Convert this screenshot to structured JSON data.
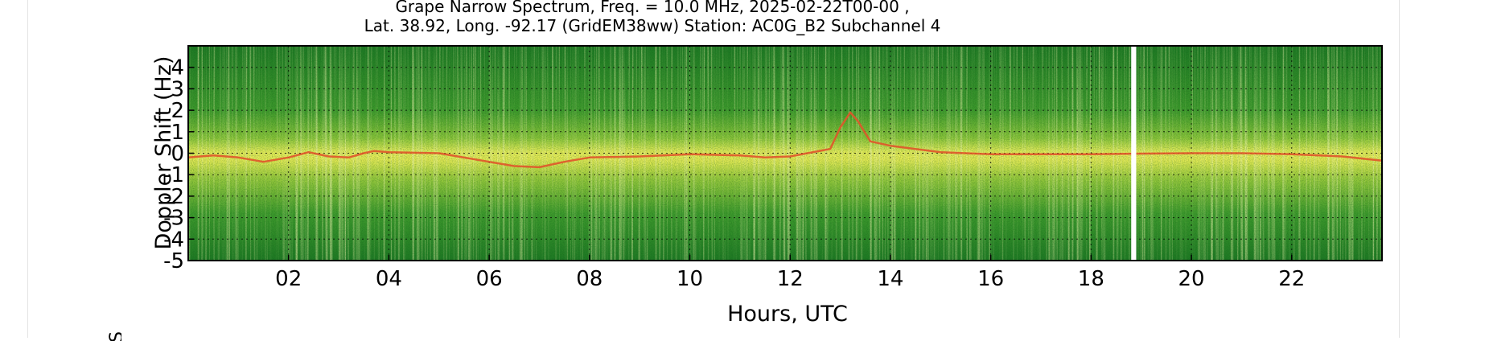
{
  "chart_data": {
    "type": "heatmap",
    "title_line1": "Grape Narrow Spectrum, Freq. = 10.0 MHz, 2025-02-22T00-00 ,",
    "title_line2": "Lat.  38.92, Long. -92.17 (GridEM38ww) Station: AC0G_B2 Subchannel 4",
    "xlabel": "Hours, UTC",
    "ylabel": "Doppler Shift (Hz)",
    "xlim": [
      0,
      23.8
    ],
    "ylim": [
      -5,
      5
    ],
    "xticks": [
      {
        "value": 2,
        "label": "02"
      },
      {
        "value": 4,
        "label": "04"
      },
      {
        "value": 6,
        "label": "06"
      },
      {
        "value": 8,
        "label": "08"
      },
      {
        "value": 10,
        "label": "10"
      },
      {
        "value": 12,
        "label": "12"
      },
      {
        "value": 14,
        "label": "14"
      },
      {
        "value": 16,
        "label": "16"
      },
      {
        "value": 18,
        "label": "18"
      },
      {
        "value": 20,
        "label": "20"
      },
      {
        "value": 22,
        "label": "22"
      }
    ],
    "yticks": [
      {
        "value": 4,
        "label": "4"
      },
      {
        "value": 3,
        "label": "3"
      },
      {
        "value": 2,
        "label": "2"
      },
      {
        "value": 1,
        "label": "1"
      },
      {
        "value": 0,
        "label": "0"
      },
      {
        "value": -1,
        "label": "-1"
      },
      {
        "value": -2,
        "label": "-2"
      },
      {
        "value": -3,
        "label": "-3"
      },
      {
        "value": -4,
        "label": "-4"
      },
      {
        "value": -5,
        "label": "-5"
      }
    ],
    "grid": true,
    "colormap": [
      "#1f7a24",
      "#4ea62e",
      "#8cc63a",
      "#e8ec55",
      "#f2a33a",
      "#e0552a"
    ],
    "data_gap_hours": [
      18.8,
      18.9
    ],
    "doppler_trace": [
      [
        0.0,
        -0.2
      ],
      [
        0.5,
        -0.1
      ],
      [
        1.0,
        -0.2
      ],
      [
        1.5,
        -0.4
      ],
      [
        2.0,
        -0.2
      ],
      [
        2.4,
        0.05
      ],
      [
        2.8,
        -0.15
      ],
      [
        3.2,
        -0.2
      ],
      [
        3.5,
        0.0
      ],
      [
        3.7,
        0.1
      ],
      [
        4.0,
        0.05
      ],
      [
        5.0,
        0.0
      ],
      [
        6.0,
        -0.4
      ],
      [
        6.5,
        -0.6
      ],
      [
        7.0,
        -0.65
      ],
      [
        7.5,
        -0.4
      ],
      [
        8.0,
        -0.2
      ],
      [
        9.0,
        -0.15
      ],
      [
        10.0,
        -0.05
      ],
      [
        11.0,
        -0.1
      ],
      [
        11.5,
        -0.2
      ],
      [
        12.0,
        -0.15
      ],
      [
        12.8,
        0.2
      ],
      [
        13.0,
        1.2
      ],
      [
        13.2,
        1.9
      ],
      [
        13.35,
        1.5
      ],
      [
        13.6,
        0.55
      ],
      [
        14.0,
        0.35
      ],
      [
        14.5,
        0.2
      ],
      [
        15.0,
        0.05
      ],
      [
        16.0,
        -0.05
      ],
      [
        17.0,
        -0.05
      ],
      [
        18.0,
        -0.05
      ],
      [
        19.0,
        -0.02
      ],
      [
        20.0,
        0.0
      ],
      [
        21.0,
        0.0
      ],
      [
        22.0,
        -0.05
      ],
      [
        23.0,
        -0.15
      ],
      [
        23.8,
        -0.35
      ]
    ]
  },
  "page": {
    "clipped_label": "S"
  }
}
